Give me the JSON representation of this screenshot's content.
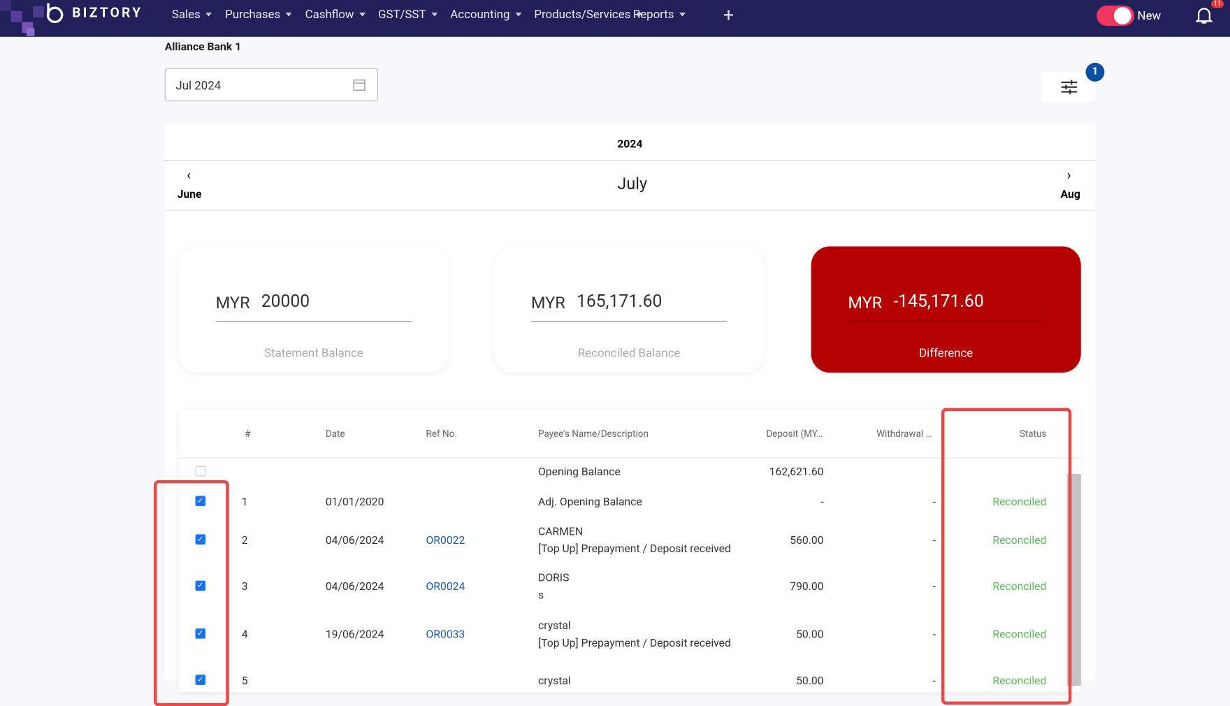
{
  "nav": {
    "brand": "BIZTORY",
    "menu": [
      "Sales",
      "Purchases",
      "Cashflow",
      "GST/SST",
      "Accounting",
      "Products/Services",
      "Reports"
    ],
    "toggle_label": "New",
    "notification_count": "11"
  },
  "account": "Alliance Bank 1",
  "period": "Jul 2024",
  "filter_count": "1",
  "calendar": {
    "year": "2024",
    "previous": "June",
    "current": "July",
    "next": "Aug"
  },
  "cards": [
    {
      "currency": "MYR",
      "amount": "20000",
      "label": "Statement Balance"
    },
    {
      "currency": "MYR",
      "amount": "165,171.60",
      "label": "Reconciled Balance"
    },
    {
      "currency": "MYR",
      "amount": "-145,171.60",
      "label": "Difference"
    }
  ],
  "table": {
    "headers": [
      "#",
      "Date",
      "Ref No.",
      "Payee's Name/Description",
      "Deposit (MY…",
      "Withdrawal …",
      "Status"
    ],
    "opening": {
      "description": "Opening Balance",
      "deposit": "162,621.60"
    },
    "rows": [
      {
        "no": "1",
        "date": "01/01/2020",
        "ref": "",
        "payee": "Adj. Opening Balance",
        "desc": "",
        "deposit": "-",
        "withdrawal": "-",
        "status": "Reconciled"
      },
      {
        "no": "2",
        "date": "04/06/2024",
        "ref": "OR0022",
        "payee": "CARMEN",
        "desc": "[Top Up] Prepayment / Deposit received",
        "deposit": "560.00",
        "withdrawal": "-",
        "status": "Reconciled"
      },
      {
        "no": "3",
        "date": "04/06/2024",
        "ref": "OR0024",
        "payee": "DORIS",
        "desc": "s",
        "deposit": "790.00",
        "withdrawal": "-",
        "status": "Reconciled"
      },
      {
        "no": "4",
        "date": "19/06/2024",
        "ref": "OR0033",
        "payee": "crystal",
        "desc": "[Top Up] Prepayment / Deposit received",
        "deposit": "50.00",
        "withdrawal": "-",
        "status": "Reconciled"
      },
      {
        "no": "5",
        "date": "",
        "ref": "",
        "payee": "crystal",
        "desc": "",
        "deposit": "50.00",
        "withdrawal": "-",
        "status": "Reconciled"
      }
    ]
  }
}
